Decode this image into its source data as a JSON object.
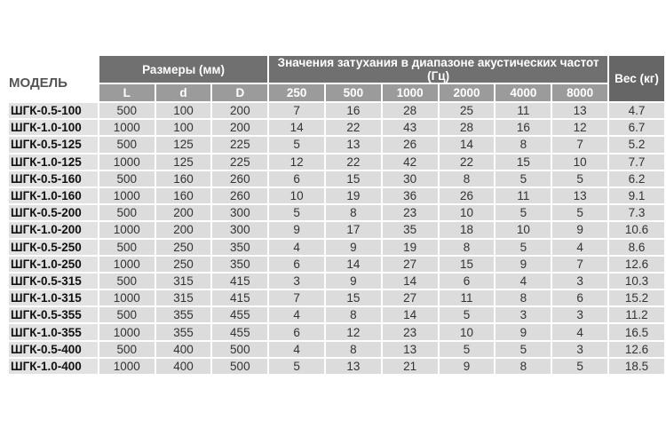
{
  "header": {
    "model": "МОДЕЛЬ",
    "dimensions": "Размеры (мм)",
    "attenuation": "Значения затухания в диапазоне акустических частот (Гц)",
    "weight": "Вес (кг)",
    "dim_cols": [
      "L",
      "d",
      "D"
    ],
    "freq_cols": [
      "250",
      "500",
      "1000",
      "2000",
      "4000",
      "8000"
    ]
  },
  "rows": [
    [
      "ШГК-0.5-100",
      "500",
      "100",
      "200",
      "7",
      "16",
      "28",
      "25",
      "11",
      "13",
      "4.7"
    ],
    [
      "ШГК-1.0-100",
      "1000",
      "100",
      "200",
      "14",
      "22",
      "43",
      "28",
      "16",
      "12",
      "6.7"
    ],
    [
      "ШГК-0.5-125",
      "500",
      "125",
      "225",
      "5",
      "13",
      "26",
      "14",
      "8",
      "7",
      "5.2"
    ],
    [
      "ШГК-1.0-125",
      "1000",
      "125",
      "225",
      "12",
      "22",
      "42",
      "22",
      "15",
      "10",
      "7.7"
    ],
    [
      "ШГК-0.5-160",
      "500",
      "160",
      "260",
      "6",
      "15",
      "30",
      "8",
      "5",
      "5",
      "6.2"
    ],
    [
      "ШГК-1.0-160",
      "1000",
      "160",
      "260",
      "10",
      "19",
      "36",
      "26",
      "11",
      "13",
      "9.1"
    ],
    [
      "ШГК-0.5-200",
      "500",
      "200",
      "300",
      "5",
      "8",
      "23",
      "10",
      "5",
      "5",
      "7.3"
    ],
    [
      "ШГК-1.0-200",
      "1000",
      "200",
      "300",
      "9",
      "17",
      "35",
      "18",
      "10",
      "9",
      "10.6"
    ],
    [
      "ШГК-0.5-250",
      "500",
      "250",
      "350",
      "4",
      "9",
      "19",
      "8",
      "5",
      "4",
      "8.6"
    ],
    [
      "ШГК-1.0-250",
      "1000",
      "250",
      "350",
      "6",
      "14",
      "27",
      "15",
      "9",
      "7",
      "12.6"
    ],
    [
      "ШГК-0.5-315",
      "500",
      "315",
      "415",
      "3",
      "9",
      "14",
      "6",
      "4",
      "3",
      "10.3"
    ],
    [
      "ШГК-1.0-315",
      "1000",
      "315",
      "415",
      "7",
      "15",
      "27",
      "11",
      "8",
      "6",
      "15.2"
    ],
    [
      "ШГК-0.5-355",
      "500",
      "355",
      "455",
      "4",
      "8",
      "14",
      "5",
      "3",
      "3",
      "11.2"
    ],
    [
      "ШГК-1.0-355",
      "1000",
      "355",
      "455",
      "6",
      "12",
      "23",
      "10",
      "9",
      "4",
      "16.5"
    ],
    [
      "ШГК-0.5-400",
      "500",
      "400",
      "500",
      "4",
      "8",
      "13",
      "5",
      "5",
      "3",
      "12.6"
    ],
    [
      "ШГК-1.0-400",
      "1000",
      "400",
      "500",
      "5",
      "13",
      "21",
      "9",
      "8",
      "5",
      "18.5"
    ]
  ]
}
